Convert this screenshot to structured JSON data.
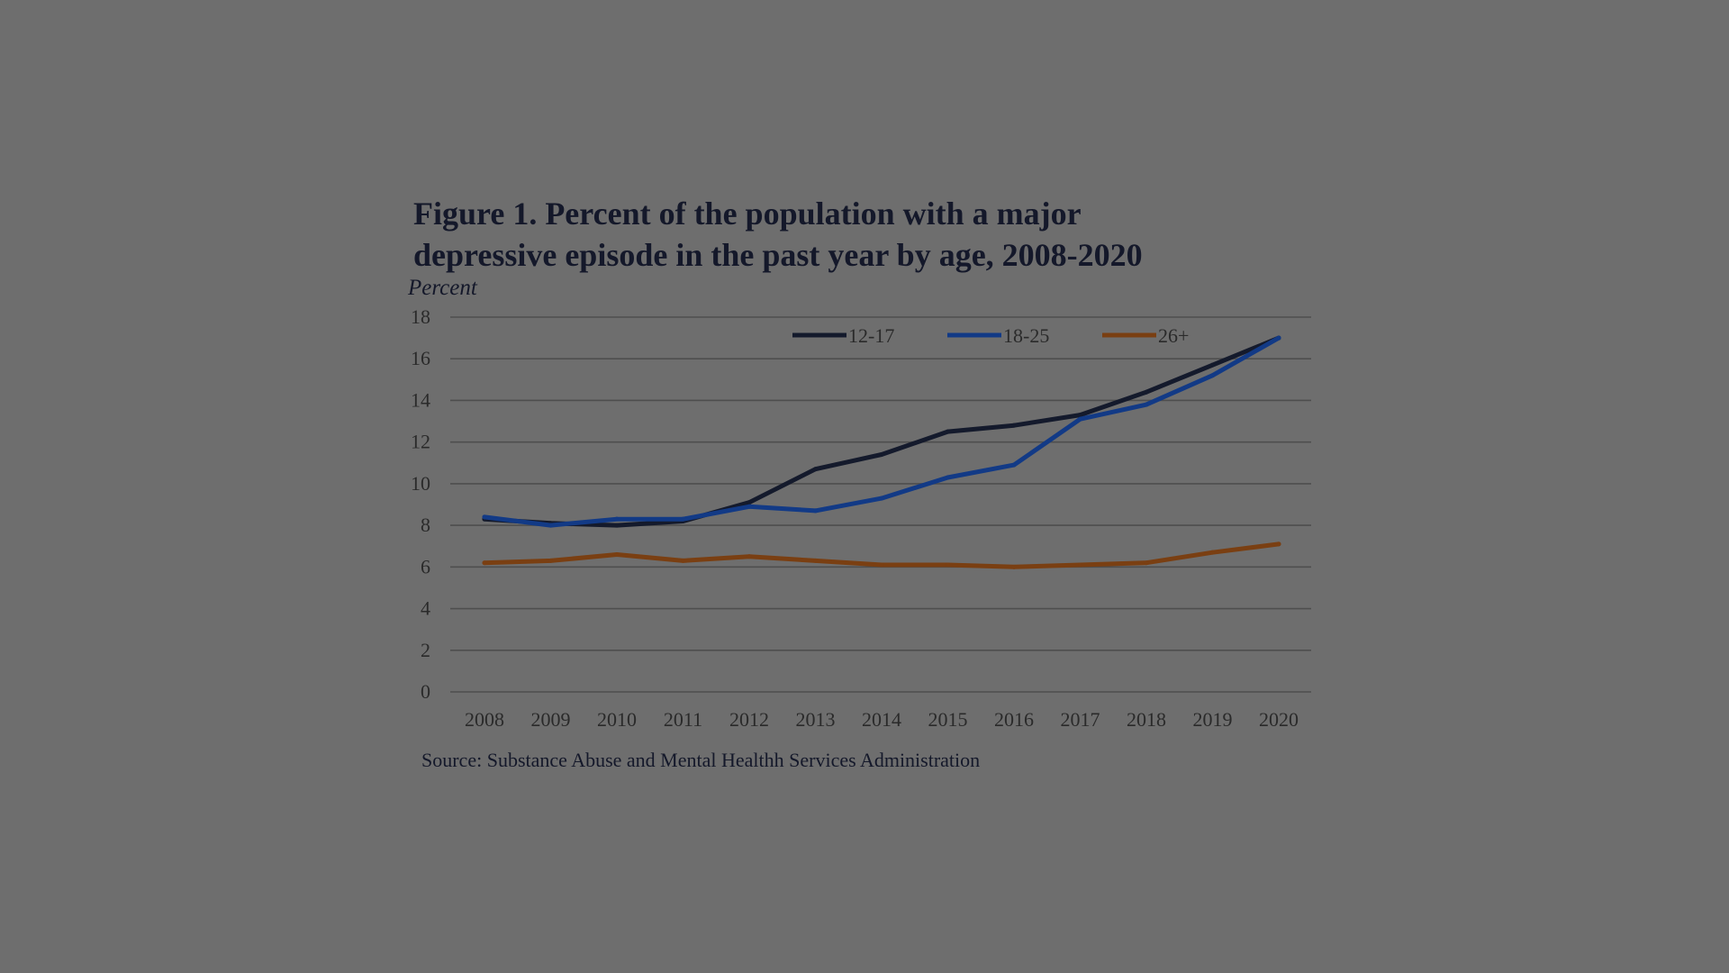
{
  "figure": {
    "title_line1": "Figure 1. Percent of the population with a major",
    "title_line2": "depressive episode in the past year by age, 2008-2020",
    "y_unit": "Percent",
    "source": "Source: Substance Abuse and Mental Healthh Services Administration"
  },
  "chart_data": {
    "type": "line",
    "title": "Figure 1. Percent of the population with a major depressive episode in the past year by age, 2008-2020",
    "xlabel": "",
    "ylabel": "Percent",
    "categories": [
      "2008",
      "2009",
      "2010",
      "2011",
      "2012",
      "2013",
      "2014",
      "2015",
      "2016",
      "2017",
      "2018",
      "2019",
      "2020"
    ],
    "ylim": [
      0,
      18
    ],
    "yticks": [
      0,
      2,
      4,
      6,
      8,
      10,
      12,
      14,
      16,
      18
    ],
    "grid": "horizontal",
    "legend_position": "top-right",
    "series": [
      {
        "name": "12-17",
        "color": "#141a2c",
        "values": [
          8.3,
          8.1,
          8.0,
          8.2,
          9.1,
          10.7,
          11.4,
          12.5,
          12.8,
          13.3,
          14.4,
          15.7,
          17.0
        ]
      },
      {
        "name": "18-25",
        "color": "#123a86",
        "values": [
          8.4,
          8.0,
          8.3,
          8.3,
          8.9,
          8.7,
          9.3,
          10.3,
          10.9,
          13.1,
          13.8,
          15.2,
          17.0
        ]
      },
      {
        "name": "26+",
        "color": "#7a3f12",
        "values": [
          6.2,
          6.3,
          6.6,
          6.3,
          6.5,
          6.3,
          6.1,
          6.1,
          6.0,
          6.1,
          6.2,
          6.7,
          7.1
        ]
      }
    ],
    "source": "Source: Substance Abuse and Mental Healthh Services Administration"
  }
}
